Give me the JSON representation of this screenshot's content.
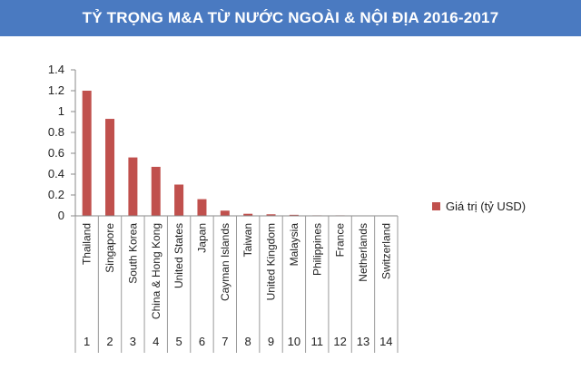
{
  "header": {
    "title": "TỶ TRỌNG M&A TỪ NƯỚC NGOÀI & NỘI ĐỊA 2016-2017"
  },
  "chart_data": {
    "type": "bar",
    "categories": [
      "Thailand",
      "Singapore",
      "South Korea",
      "China & Hong Kong",
      "United States",
      "Japan",
      "Cayman Islands",
      "Taiwan",
      "United Kingdom",
      "Malaysia",
      "Philippines",
      "France",
      "Netherlands",
      "Switzerland"
    ],
    "index_labels": [
      "1",
      "2",
      "3",
      "4",
      "5",
      "6",
      "7",
      "8",
      "9",
      "10",
      "11",
      "12",
      "13",
      "14"
    ],
    "series": [
      {
        "name": "Giá trị (tỷ USD)",
        "color": "#c0504d",
        "values": [
          1.2,
          0.93,
          0.56,
          0.47,
          0.3,
          0.16,
          0.05,
          0.02,
          0.015,
          0.01,
          0.005,
          0.005,
          0.003,
          0.003
        ]
      }
    ],
    "yticks": [
      "0",
      "0.2",
      "0.4",
      "0.6",
      "0.8",
      "1",
      "1.2",
      "1.4"
    ],
    "ylim": [
      0,
      1.4
    ],
    "legend_position": "right",
    "grid": false
  }
}
